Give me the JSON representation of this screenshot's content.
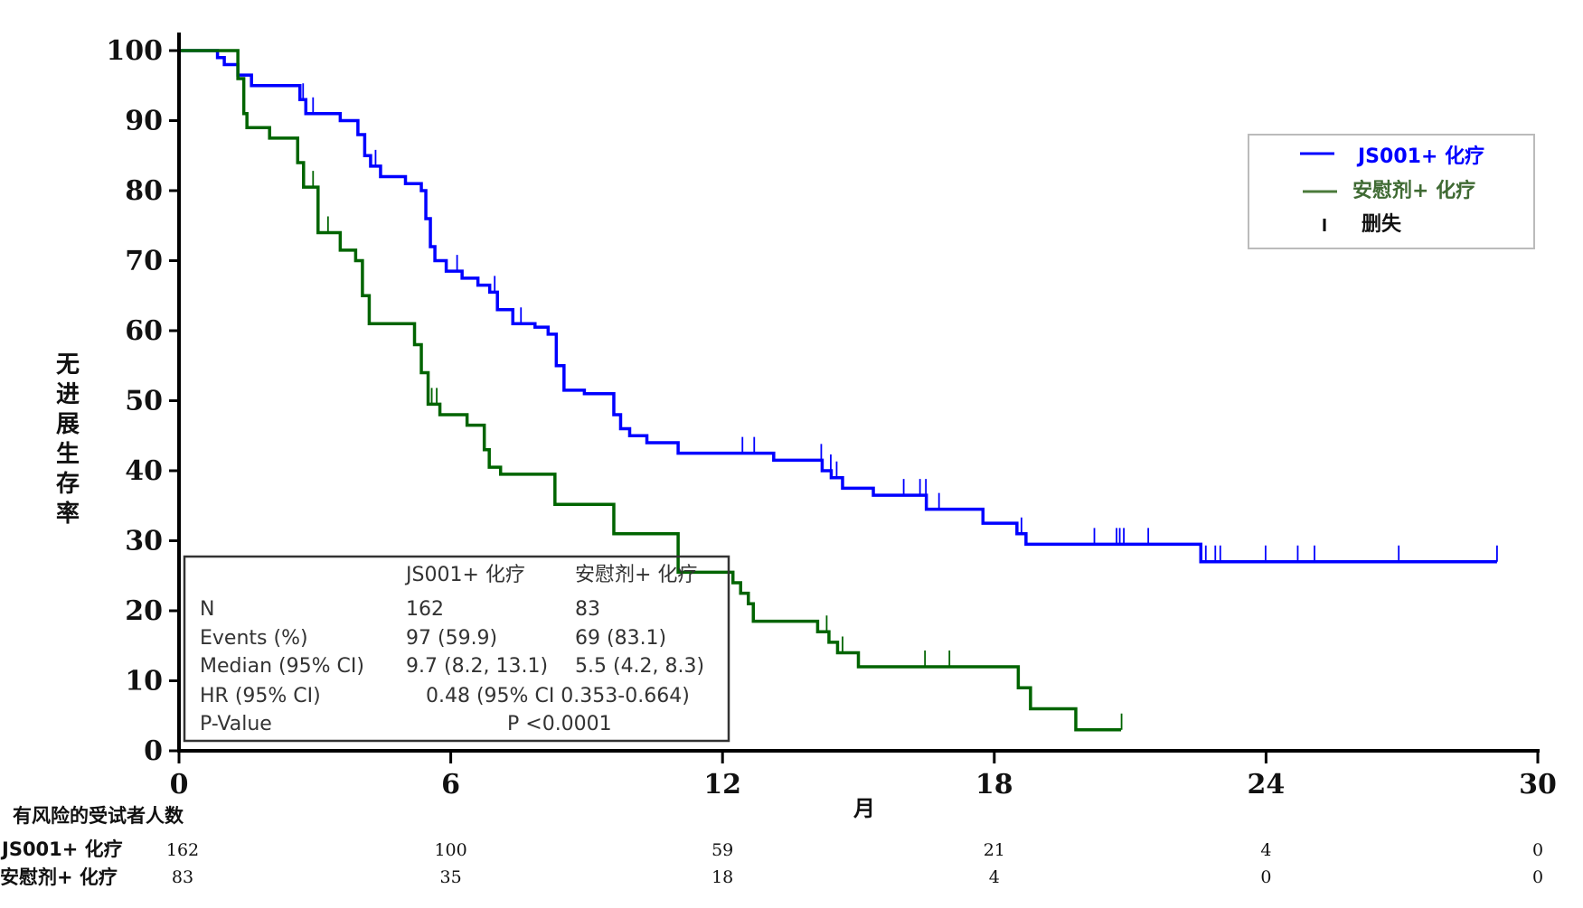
{
  "chart_data": {
    "type": "line",
    "subtype": "kaplan-meier",
    "xlabel": "月",
    "ylabel": "无进展生存率",
    "xlim": [
      0,
      30
    ],
    "ylim": [
      0,
      100
    ],
    "xticks": [
      "0",
      "6",
      "12",
      "18",
      "24",
      "30"
    ],
    "yticks": [
      "0",
      "10",
      "20",
      "30",
      "40",
      "50",
      "60",
      "70",
      "80",
      "90",
      "100"
    ],
    "grid": false,
    "legend_position": "top-right",
    "legend": {
      "censor_label": "删失"
    },
    "series": [
      {
        "name": "JS001+ 化疗",
        "color": "#0000ff",
        "steps": [
          [
            0,
            100
          ],
          [
            0.85,
            99
          ],
          [
            1.0,
            98
          ],
          [
            1.3,
            96.5
          ],
          [
            1.6,
            95
          ],
          [
            2.67,
            93
          ],
          [
            2.8,
            91
          ],
          [
            3.56,
            90
          ],
          [
            3.95,
            88
          ],
          [
            4.1,
            85
          ],
          [
            4.23,
            83.5
          ],
          [
            4.45,
            82
          ],
          [
            5.0,
            81
          ],
          [
            5.35,
            80
          ],
          [
            5.45,
            76
          ],
          [
            5.55,
            72
          ],
          [
            5.65,
            70
          ],
          [
            5.9,
            68.5
          ],
          [
            6.25,
            67.5
          ],
          [
            6.6,
            66.5
          ],
          [
            6.86,
            65.5
          ],
          [
            7.03,
            63
          ],
          [
            7.37,
            61
          ],
          [
            7.86,
            60.5
          ],
          [
            8.15,
            59.5
          ],
          [
            8.33,
            55
          ],
          [
            8.5,
            51.5
          ],
          [
            8.95,
            51
          ],
          [
            9.6,
            48
          ],
          [
            9.75,
            46
          ],
          [
            9.95,
            45
          ],
          [
            10.33,
            44
          ],
          [
            11.02,
            42.5
          ],
          [
            13.13,
            41.5
          ],
          [
            14.2,
            40
          ],
          [
            14.4,
            39
          ],
          [
            14.65,
            37.5
          ],
          [
            15.33,
            36.5
          ],
          [
            16.5,
            34.5
          ],
          [
            17.75,
            32.5
          ],
          [
            18.5,
            31
          ],
          [
            18.7,
            29.5
          ],
          [
            22.56,
            27
          ],
          [
            29.1,
            27
          ]
        ],
        "censored": [
          2.74,
          2.96,
          4.34,
          6.14,
          6.97,
          7.55,
          12.44,
          12.7,
          14.18,
          14.39,
          14.52,
          16.0,
          16.36,
          16.49,
          16.78,
          18.6,
          20.21,
          20.7,
          20.77,
          20.86,
          21.4,
          22.67,
          22.88,
          22.99,
          23.99,
          24.7,
          25.07,
          26.93,
          29.1
        ]
      },
      {
        "name": "安慰剂+ 化疗",
        "color": "#006400",
        "steps": [
          [
            0,
            100
          ],
          [
            1.3,
            96
          ],
          [
            1.43,
            91
          ],
          [
            1.5,
            89
          ],
          [
            2.0,
            87.5
          ],
          [
            2.62,
            84
          ],
          [
            2.75,
            80.5
          ],
          [
            3.07,
            74
          ],
          [
            3.56,
            71.5
          ],
          [
            3.9,
            70
          ],
          [
            4.05,
            65
          ],
          [
            4.2,
            61
          ],
          [
            5.2,
            58
          ],
          [
            5.35,
            54
          ],
          [
            5.5,
            49.5
          ],
          [
            5.76,
            48
          ],
          [
            6.36,
            46.5
          ],
          [
            6.74,
            43
          ],
          [
            6.85,
            40.5
          ],
          [
            7.1,
            39.5
          ],
          [
            8.3,
            35.2
          ],
          [
            9.6,
            31
          ],
          [
            11.02,
            25.5
          ],
          [
            12.23,
            24
          ],
          [
            12.4,
            22.5
          ],
          [
            12.57,
            21
          ],
          [
            12.68,
            18.5
          ],
          [
            14.1,
            17
          ],
          [
            14.35,
            15.5
          ],
          [
            14.54,
            14
          ],
          [
            15.0,
            12
          ],
          [
            18.53,
            9
          ],
          [
            18.8,
            6
          ],
          [
            19.8,
            3
          ],
          [
            20.8,
            3
          ]
        ],
        "censored": [
          2.96,
          3.29,
          5.58,
          5.69,
          14.3,
          14.65,
          16.47,
          17.01,
          20.81
        ]
      }
    ],
    "stats_table": {
      "headers": [
        "",
        "JS001+ 化疗",
        "安慰剂+ 化疗"
      ],
      "rows": [
        {
          "label": "N",
          "a": "162",
          "b": "83"
        },
        {
          "label": "Events (%)",
          "a": "97 (59.9)",
          "b": "69 (83.1)"
        },
        {
          "label": "Median (95% CI)",
          "a": "9.7 (8.2, 13.1)",
          "b": "5.5 (4.2, 8.3)"
        }
      ],
      "hr_label": "HR (95% CI)",
      "hr_value": "0.48 (95% CI 0.353-0.664)",
      "p_label": "P-Value",
      "p_value": "P <0.0001"
    },
    "risk_table": {
      "title": "有风险的受试者人数",
      "times": [
        0,
        6,
        12,
        18,
        24,
        30
      ],
      "rows": [
        {
          "label": "JS001+ 化疗",
          "values": [
            "162",
            "100",
            "59",
            "21",
            "4",
            "0"
          ]
        },
        {
          "label": "安慰剂+ 化疗",
          "values": [
            "83",
            "35",
            "18",
            "4",
            "0",
            "0"
          ]
        }
      ]
    }
  }
}
